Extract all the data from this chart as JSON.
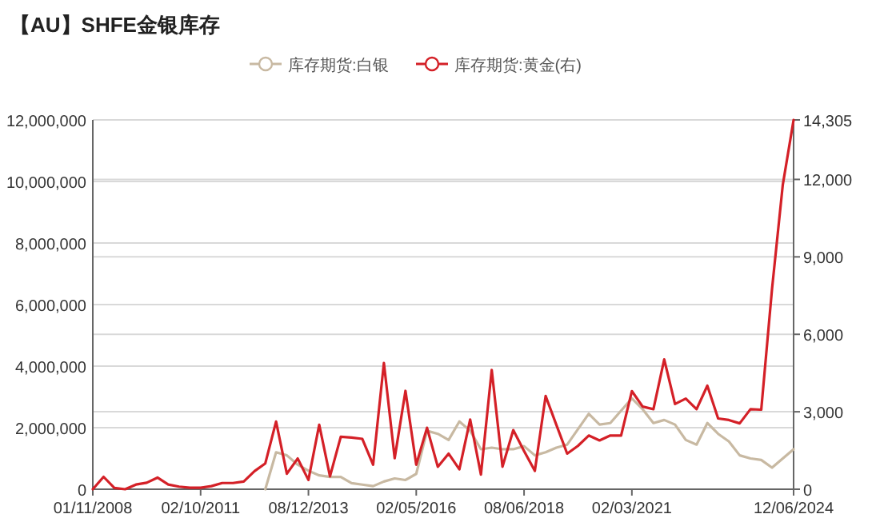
{
  "chart_data": {
    "type": "line",
    "title": "【AU】SHFE金银库存",
    "categories": [
      "01/11/2008",
      null,
      null,
      null,
      null,
      null,
      null,
      null,
      null,
      null,
      "02/10/2011",
      null,
      null,
      null,
      null,
      null,
      null,
      null,
      null,
      null,
      "08/12/2013",
      null,
      null,
      null,
      null,
      null,
      null,
      null,
      null,
      null,
      "02/05/2016",
      null,
      null,
      null,
      null,
      null,
      null,
      null,
      null,
      null,
      "08/06/2018",
      null,
      null,
      null,
      null,
      null,
      null,
      null,
      null,
      null,
      "02/03/2021",
      null,
      null,
      null,
      null,
      null,
      null,
      null,
      null,
      null,
      null,
      null,
      null,
      null,
      null,
      "12/06/2024"
    ],
    "series": [
      {
        "name": "库存期货:白银",
        "color": "#c8b9a2",
        "values": [
          null,
          null,
          null,
          null,
          null,
          null,
          null,
          null,
          null,
          null,
          null,
          null,
          null,
          null,
          null,
          null,
          0,
          1200000,
          1100000,
          800000,
          600000,
          450000,
          400000,
          400000,
          200000,
          150000,
          100000,
          250000,
          350000,
          300000,
          500000,
          1900000,
          1800000,
          1600000,
          2200000,
          1900000,
          1300000,
          1350000,
          1300000,
          1300000,
          1400000,
          1100000,
          1200000,
          1350000,
          1450000,
          1950000,
          2450000,
          2100000,
          2150000,
          2550000,
          2950000,
          2600000,
          2150000,
          2250000,
          2100000,
          1600000,
          1450000,
          2150000,
          1800000,
          1550000,
          1100000,
          1000000,
          950000,
          700000,
          1000000,
          1300000
        ]
      },
      {
        "name": "库存期货:黄金(右)",
        "color": "#d42027",
        "axis": "y2",
        "values": [
          0,
          480,
          50,
          0,
          180,
          250,
          450,
          180,
          100,
          60,
          60,
          120,
          240,
          240,
          300,
          700,
          1000,
          2620,
          600,
          1190,
          360,
          2500,
          500,
          2030,
          2000,
          1950,
          950,
          4890,
          1200,
          3810,
          950,
          2380,
          870,
          1380,
          770,
          2700,
          570,
          4620,
          870,
          2290,
          1480,
          710,
          3610,
          2490,
          1380,
          1680,
          2080,
          1890,
          2080,
          2080,
          3800,
          3200,
          3100,
          5030,
          3300,
          3510,
          3100,
          4010,
          2740,
          2680,
          2550,
          3100,
          3080,
          7760,
          11800,
          14305
        ]
      }
    ],
    "ylim": [
      0,
      12000000
    ],
    "yticks": [
      {
        "value": 0,
        "label": "0"
      },
      {
        "value": 2000000,
        "label": "2,000,000"
      },
      {
        "value": 4000000,
        "label": "4,000,000"
      },
      {
        "value": 6000000,
        "label": "6,000,000"
      },
      {
        "value": 8000000,
        "label": "8,000,000"
      },
      {
        "value": 10000000,
        "label": "10,000,000"
      },
      {
        "value": 12000000,
        "label": "12,000,000"
      }
    ],
    "y2lim": [
      0,
      14305
    ],
    "y2ticks": [
      {
        "value": 0,
        "label": "0"
      },
      {
        "value": 3000,
        "label": "3,000"
      },
      {
        "value": 6000,
        "label": "6,000"
      },
      {
        "value": 9000,
        "label": "9,000"
      },
      {
        "value": 12000,
        "label": "12,000"
      },
      {
        "value": 14305,
        "label": "14,305"
      }
    ],
    "grid": "y",
    "legend": "top",
    "line_style": "solid"
  }
}
